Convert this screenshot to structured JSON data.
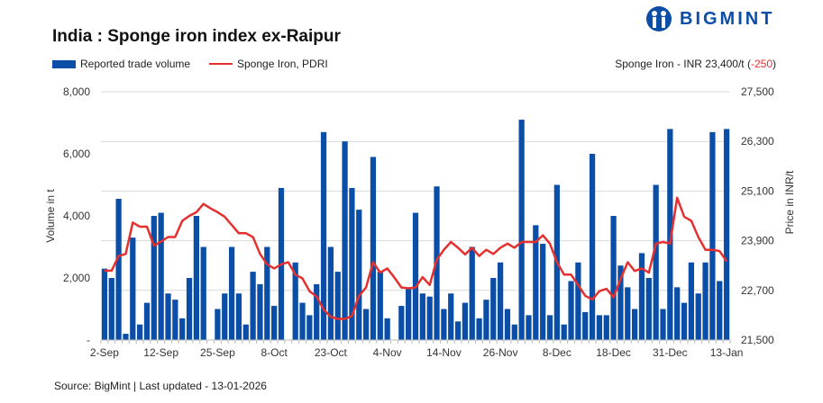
{
  "title": "India : Sponge iron index ex-Raipur",
  "logo": {
    "text": "BIGMINT",
    "color": "#0a4ea8"
  },
  "legend": {
    "volume": "Reported trade volume",
    "price": "Sponge Iron, PDRI"
  },
  "price_note": {
    "prefix": "Sponge Iron - INR 23,400/t (",
    "change": "-250",
    "suffix": ")",
    "change_color": "#e53030"
  },
  "source": "Source: BigMint | Last updated - 13-01-2026",
  "chart_data": {
    "type": "bar+line",
    "title": "India : Sponge iron index ex-Raipur",
    "ylabel_left": "Volume in t",
    "ylabel_right": "Price in INR/t",
    "ylim_left": [
      0,
      8000
    ],
    "ylim_right": [
      21500,
      27500
    ],
    "yticks_left": [
      "8,000",
      "6,000",
      "4,000",
      "2,000",
      "-"
    ],
    "yticks_right": [
      "27,500",
      "26,300",
      "25,100",
      "23,900",
      "22,700",
      "21,500"
    ],
    "x_tick_labels": [
      "2-Sep",
      "12-Sep",
      "25-Sep",
      "8-Oct",
      "23-Oct",
      "4-Nov",
      "14-Nov",
      "26-Nov",
      "8-Dec",
      "18-Dec",
      "31-Dec",
      "13-Jan"
    ],
    "grid": true,
    "legend_position": "top-left",
    "series": [
      {
        "name": "Reported trade volume",
        "type": "bar",
        "axis": "left",
        "color": "#0a4ea8",
        "values": [
          2300,
          2000,
          4550,
          200,
          3300,
          500,
          1200,
          4000,
          4100,
          1500,
          1300,
          700,
          2000,
          4000,
          3000,
          0,
          1000,
          1500,
          3000,
          1500,
          500,
          2200,
          1800,
          3000,
          1100,
          4900,
          0,
          2500,
          1200,
          800,
          1800,
          6700,
          3000,
          2200,
          6400,
          4900,
          4200,
          1000,
          5900,
          2200,
          700,
          0,
          1100,
          1700,
          4100,
          1500,
          1400,
          4950,
          1000,
          1500,
          600,
          1200,
          3000,
          700,
          1300,
          2000,
          2500,
          1000,
          500,
          7100,
          800,
          3700,
          3100,
          800,
          5000,
          500,
          1900,
          2500,
          900,
          6000,
          800,
          800,
          4000,
          2400,
          1700,
          1000,
          2800,
          2000,
          5000,
          1000,
          6800,
          1700,
          1200,
          2500,
          1500,
          2500,
          6700,
          1900,
          6800
        ]
      },
      {
        "name": "Sponge Iron, PDRI",
        "type": "line",
        "axis": "right",
        "color": "#e53030",
        "values": [
          23175,
          23175,
          23530,
          23580,
          24340,
          24240,
          24240,
          23780,
          23880,
          23990,
          23990,
          24380,
          24500,
          24590,
          24790,
          24680,
          24590,
          24480,
          24280,
          24080,
          24080,
          23990,
          23580,
          23330,
          23230,
          23330,
          23380,
          23080,
          22990,
          22680,
          22550,
          22240,
          22060,
          22010,
          22010,
          22080,
          22570,
          22770,
          23380,
          23130,
          23230,
          23010,
          22770,
          22750,
          22770,
          23020,
          22830,
          23440,
          23680,
          23870,
          23730,
          23570,
          23730,
          23530,
          23680,
          23580,
          23730,
          23830,
          23730,
          23870,
          23870,
          23870,
          24030,
          23830,
          23380,
          23080,
          23080,
          22830,
          22570,
          22480,
          22680,
          22740,
          22530,
          22970,
          23380,
          23170,
          23230,
          23130,
          23830,
          23870,
          23830,
          24940,
          24480,
          24380,
          23990,
          23680,
          23680,
          23650,
          23400
        ]
      }
    ]
  }
}
